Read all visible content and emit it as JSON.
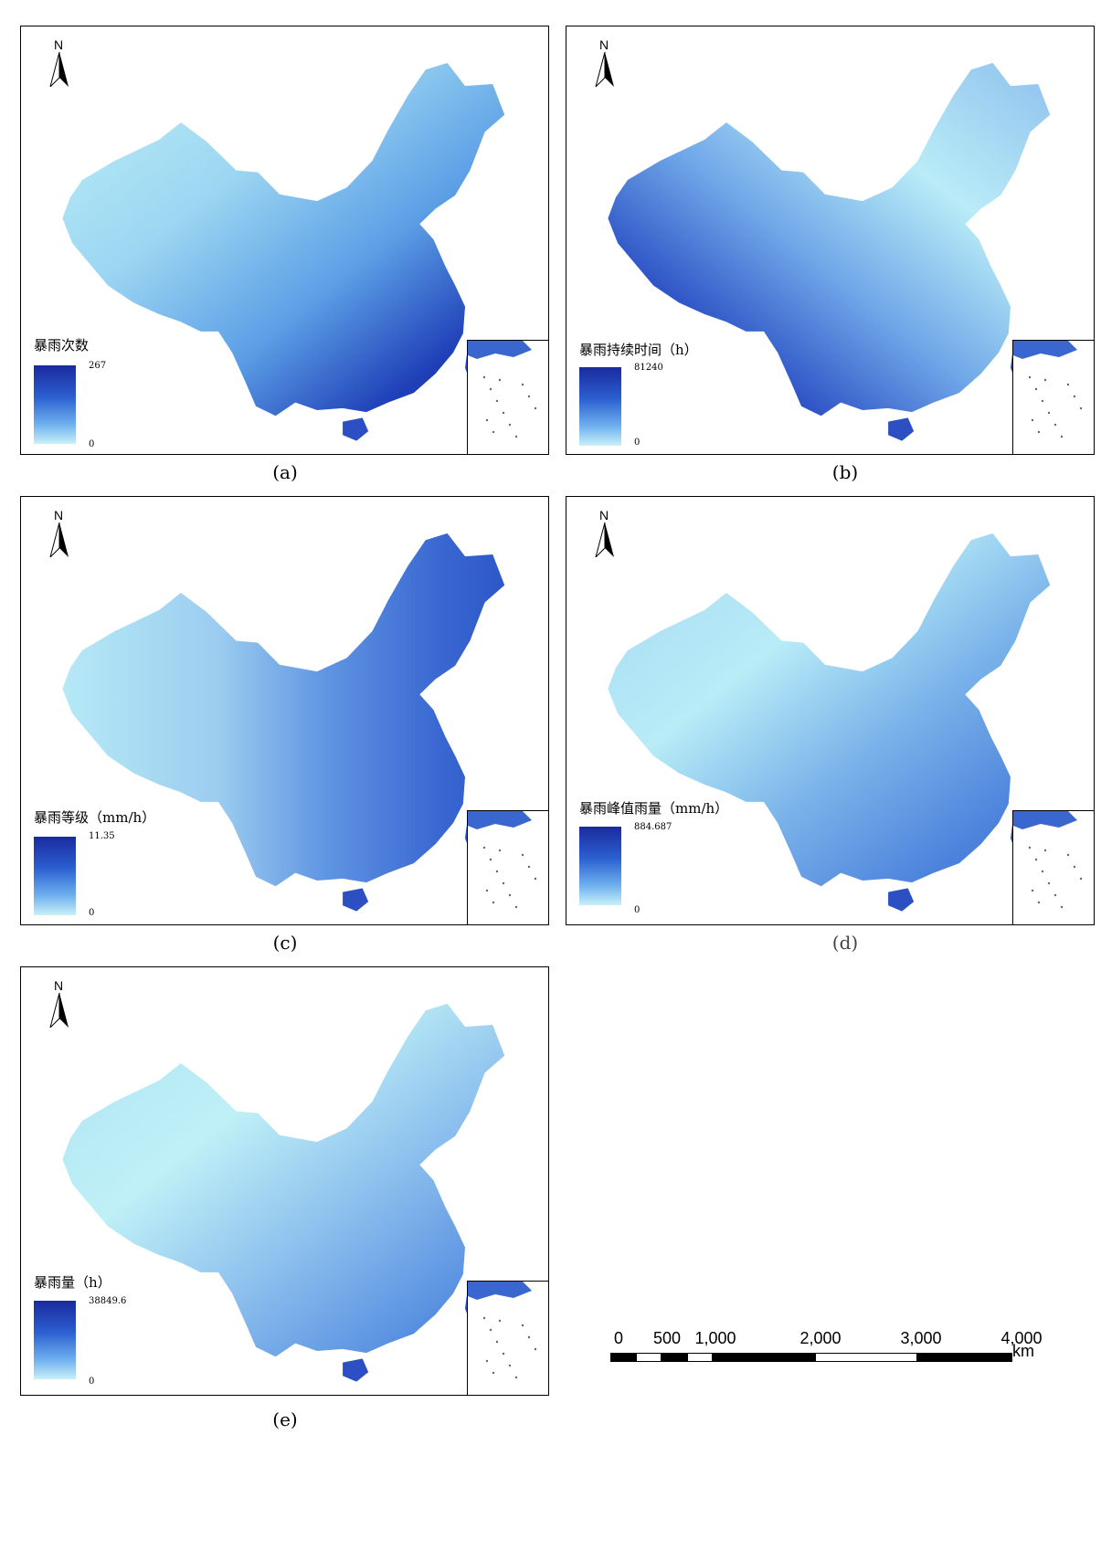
{
  "panels": [
    {
      "legend_title": "暴雨次数",
      "max": "267",
      "min": "0",
      "caption": "(a)",
      "style": "count"
    },
    {
      "legend_title": "暴雨持续时间（h）",
      "max": "81240",
      "min": "0",
      "caption": "(b)",
      "style": "duration"
    },
    {
      "legend_title": "暴雨等级（mm/h）",
      "max": "11.35",
      "min": "0",
      "caption": "(c)",
      "style": "grade"
    },
    {
      "legend_title": "暴雨峰值雨量（mm/h）",
      "max": "884.687",
      "min": "0",
      "caption": "(d)",
      "style": "peak"
    },
    {
      "legend_title": "暴雨量（h）",
      "max": "38849.6",
      "min": "0",
      "caption": "(e)",
      "style": "amount"
    }
  ],
  "north_arrow": {
    "label": "N",
    "icon": "north-arrow-icon"
  },
  "scale_bar": {
    "labels": [
      "0",
      "500",
      "1,000",
      "2,000",
      "3,000",
      "4,000"
    ],
    "unit": "km"
  },
  "colors": {
    "dark": "#1a2a9e",
    "mid": "#3a73d8",
    "light": "#c8f1f8"
  }
}
